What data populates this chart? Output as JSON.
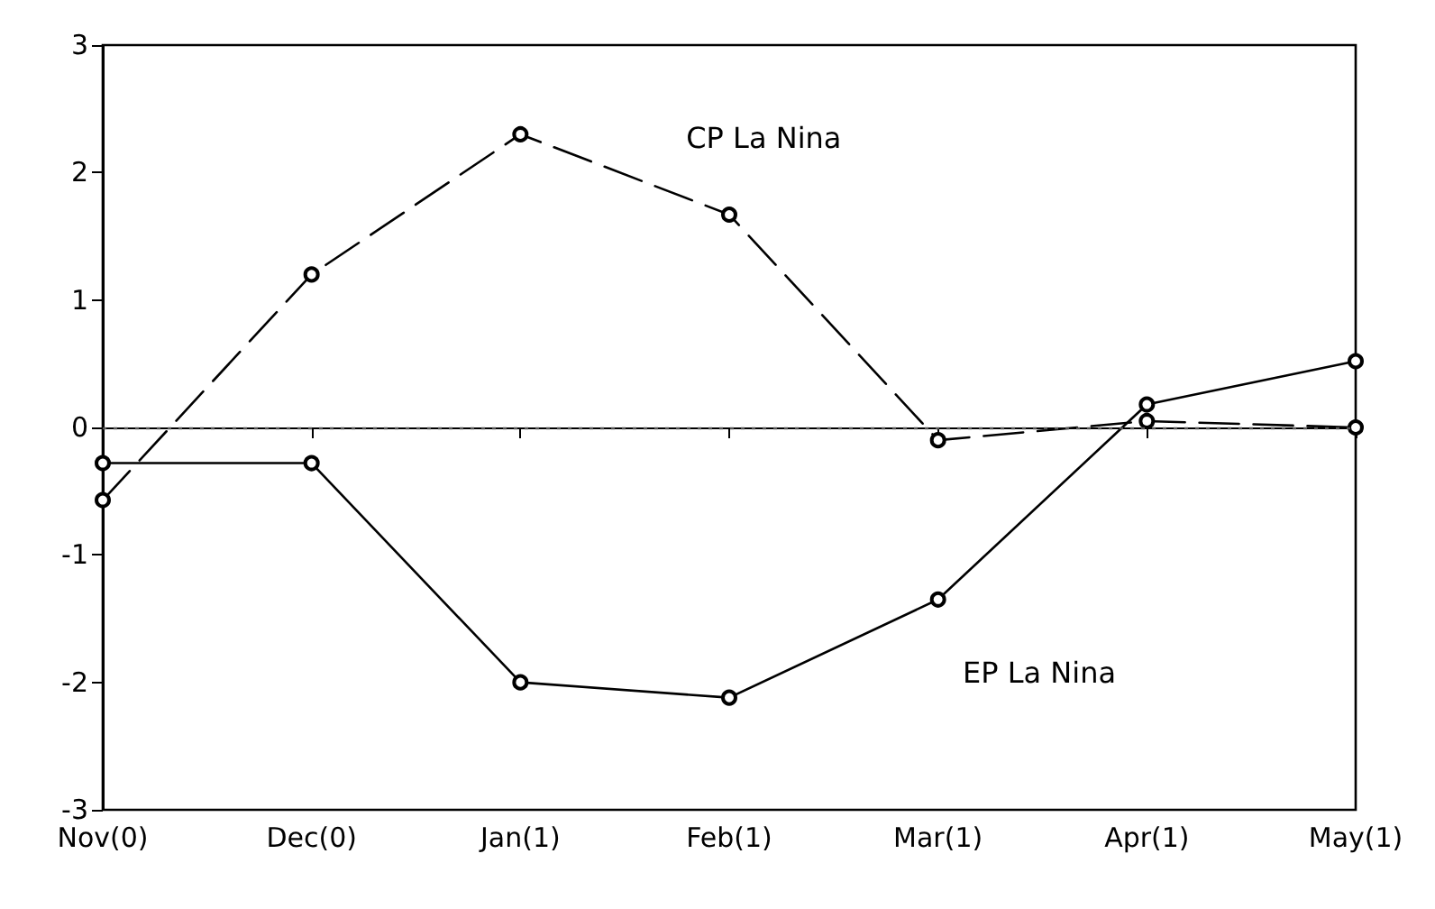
{
  "chart_data": {
    "type": "line",
    "categories": [
      "Nov(0)",
      "Dec(0)",
      "Jan(1)",
      "Feb(1)",
      "Mar(1)",
      "Apr(1)",
      "May(1)"
    ],
    "series": [
      {
        "name": "CP La Nina",
        "color": "#000000",
        "line_style": "dashed",
        "values": [
          -0.57,
          1.2,
          2.3,
          1.67,
          -0.1,
          0.05,
          0.0
        ]
      },
      {
        "name": "EP La Nina",
        "color": "#000000",
        "line_style": "solid",
        "values": [
          -0.28,
          -0.28,
          -2.0,
          -2.12,
          -1.35,
          0.18,
          0.52
        ]
      }
    ],
    "ylim": [
      -3,
      3
    ],
    "yticks": [
      -3,
      -2,
      -1,
      0,
      1,
      2,
      3
    ],
    "grid": false,
    "legend": false,
    "marker": "circle",
    "ref_lines": [
      {
        "axis": "y",
        "value": 0,
        "label": null,
        "color": "#555555",
        "line_style": "dotted"
      }
    ]
  }
}
